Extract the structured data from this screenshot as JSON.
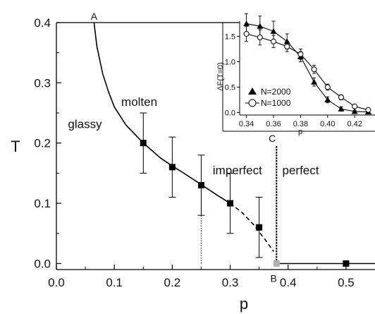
{
  "chart_data": [
    {
      "type": "line",
      "xlabel": "p",
      "ylabel": "T",
      "xlim": [
        0.0,
        0.55
      ],
      "ylim": [
        -0.01,
        0.4
      ],
      "x_ticks": [
        "0.0",
        "0.1",
        "0.2",
        "0.3",
        "0.4",
        "0.5"
      ],
      "x_tick_values": [
        0.0,
        0.1,
        0.2,
        0.3,
        0.4,
        0.5
      ],
      "y_ticks": [
        "0.0",
        "0.1",
        "0.2",
        "0.3",
        "0.4"
      ],
      "y_tick_values": [
        0.0,
        0.1,
        0.2,
        0.3,
        0.4
      ],
      "series": [
        {
          "style": "solid",
          "x": [
            0.065,
            0.07,
            0.08,
            0.09,
            0.1,
            0.12,
            0.15,
            0.18,
            0.2,
            0.22,
            0.25,
            0.28,
            0.3
          ],
          "y": [
            0.4,
            0.36,
            0.315,
            0.285,
            0.26,
            0.23,
            0.2,
            0.175,
            0.162,
            0.15,
            0.131,
            0.112,
            0.1
          ]
        },
        {
          "style": "dashed",
          "x": [
            0.3,
            0.32,
            0.34,
            0.36,
            0.375
          ],
          "y": [
            0.1,
            0.085,
            0.065,
            0.04,
            0.02
          ]
        },
        {
          "style": "solid",
          "x": [
            0.38,
            0.55
          ],
          "y": [
            0.0,
            0.0
          ]
        },
        {
          "style": "points-with-error",
          "x": [
            0.15,
            0.2,
            0.25,
            0.3,
            0.35,
            0.5
          ],
          "y": [
            0.2,
            0.16,
            0.13,
            0.1,
            0.06,
            0.0
          ],
          "err": [
            0.05,
            0.05,
            0.05,
            0.05,
            0.05,
            0.0
          ]
        },
        {
          "style": "gray-point",
          "x": [
            0.38
          ],
          "y": [
            0.0
          ]
        }
      ],
      "vertical_lines": [
        {
          "x": 0.25,
          "y0": 0.0,
          "y1": 0.13,
          "style": "dotted"
        },
        {
          "x": 0.38,
          "y0": 0.0,
          "y1": 0.195,
          "style": "dense-dotted"
        }
      ],
      "top_line": {
        "y": 0.4
      },
      "annotations": [
        {
          "text": "A",
          "x": 0.065,
          "y": 0.4
        },
        {
          "text": "B",
          "x": 0.375,
          "y": 0.0
        },
        {
          "text": "C",
          "x": 0.375,
          "y": 0.195
        }
      ],
      "regions": [
        {
          "text": "glassy",
          "x": 0.02,
          "y": 0.225
        },
        {
          "text": "molten",
          "x": 0.112,
          "y": 0.262
        },
        {
          "text": "imperfect",
          "x": 0.27,
          "y": 0.148
        },
        {
          "text": "perfect",
          "x": 0.39,
          "y": 0.148
        }
      ]
    },
    {
      "type": "line",
      "xlabel": "p",
      "ylabel": "ΔF(T=0)",
      "xlim": [
        0.335,
        0.435
      ],
      "ylim": [
        -0.05,
        1.8
      ],
      "x_ticks": [
        "0.34",
        "0.36",
        "0.38",
        "0.40",
        "0.42"
      ],
      "x_tick_values": [
        0.34,
        0.36,
        0.38,
        0.4,
        0.42
      ],
      "y_ticks": [
        "0.0",
        "0.5",
        "1.0",
        "1.5"
      ],
      "y_tick_values": [
        0.0,
        0.5,
        1.0,
        1.5
      ],
      "legend": "lower-left",
      "series": [
        {
          "name": "N=2000",
          "marker": "filled-triangle",
          "x": [
            0.34,
            0.35,
            0.36,
            0.37,
            0.38,
            0.39,
            0.4,
            0.41,
            0.42,
            0.43
          ],
          "y": [
            1.75,
            1.7,
            1.6,
            1.4,
            1.1,
            0.6,
            0.25,
            0.07,
            0.02,
            0.01
          ],
          "err": [
            0.2,
            0.2,
            0.2,
            0.15,
            0.1,
            0.08,
            0.06,
            0.04,
            0.02,
            0.01
          ]
        },
        {
          "name": "N=1000",
          "marker": "open-circle",
          "x": [
            0.34,
            0.35,
            0.36,
            0.37,
            0.38,
            0.39,
            0.4,
            0.41,
            0.42,
            0.43
          ],
          "y": [
            1.55,
            1.48,
            1.4,
            1.3,
            1.15,
            0.85,
            0.5,
            0.3,
            0.12,
            0.05
          ],
          "err": [
            0.15,
            0.15,
            0.12,
            0.1,
            0.1,
            0.08,
            0.06,
            0.05,
            0.03,
            0.02
          ]
        }
      ]
    }
  ]
}
